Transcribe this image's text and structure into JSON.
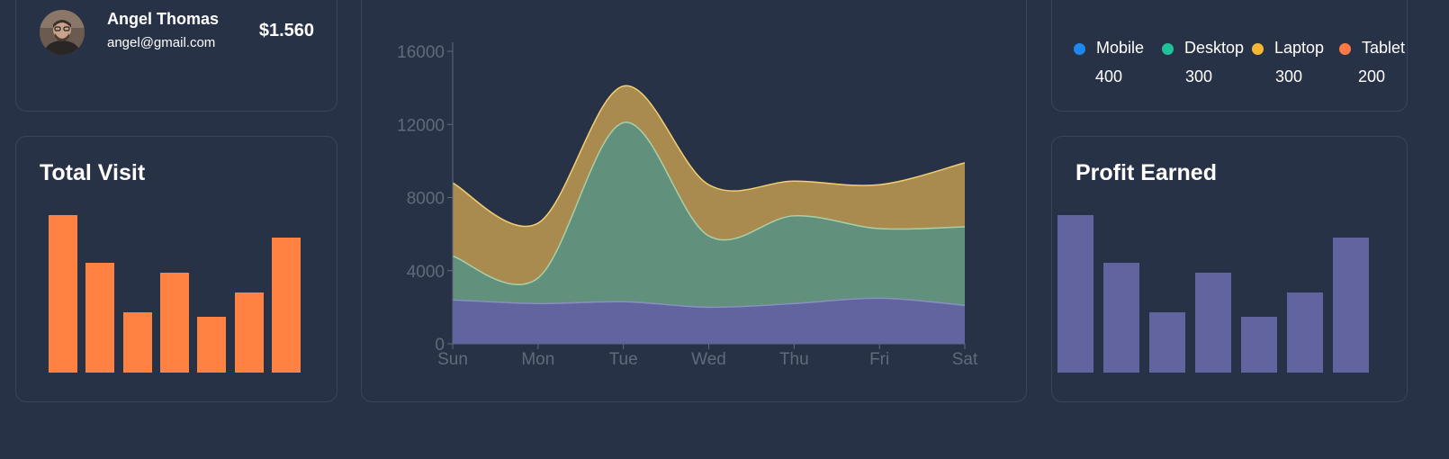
{
  "user": {
    "name": "Angel Thomas",
    "email": "angel@gmail.com",
    "amount": "$1.560"
  },
  "total_visit": {
    "title": "Total Visit",
    "color": "#ff8243"
  },
  "profit_earned": {
    "title": "Profit Earned",
    "color": "#6264a0"
  },
  "devices": {
    "items": [
      {
        "label": "Mobile",
        "value": "400",
        "color": "#1e88f0"
      },
      {
        "label": "Desktop",
        "value": "300",
        "color": "#1fc29a"
      },
      {
        "label": "Laptop",
        "value": "300",
        "color": "#f7b733"
      },
      {
        "label": "Tablet",
        "value": "200",
        "color": "#ff7a45"
      }
    ]
  },
  "chart_data": [
    {
      "type": "bar",
      "title": "Total Visit",
      "values": [
        7000,
        4900,
        2700,
        4450,
        2500,
        3550,
        6000
      ],
      "ylim": [
        0,
        8000
      ]
    },
    {
      "type": "bar",
      "title": "Profit Earned",
      "values": [
        7000,
        4900,
        2700,
        4450,
        2500,
        3550,
        6000
      ],
      "ylim": [
        0,
        8000
      ]
    },
    {
      "type": "area",
      "stacked": true,
      "categories": [
        "Sun",
        "Mon",
        "Tue",
        "Wed",
        "Thu",
        "Fri",
        "Sat"
      ],
      "y_ticks": [
        "0",
        "4000",
        "8000",
        "12000",
        "16000"
      ],
      "ylim": [
        0,
        16000
      ],
      "series": [
        {
          "values": [
            2400,
            2200,
            2300,
            2000,
            2200,
            2500,
            2100
          ],
          "color": "#6264a0"
        },
        {
          "values": [
            2400,
            1400,
            9800,
            3900,
            4800,
            3800,
            4300
          ],
          "color": "#61907c"
        },
        {
          "values": [
            4000,
            3000,
            2000,
            2800,
            1900,
            2400,
            3500
          ],
          "color": "#a98b50"
        }
      ]
    }
  ]
}
